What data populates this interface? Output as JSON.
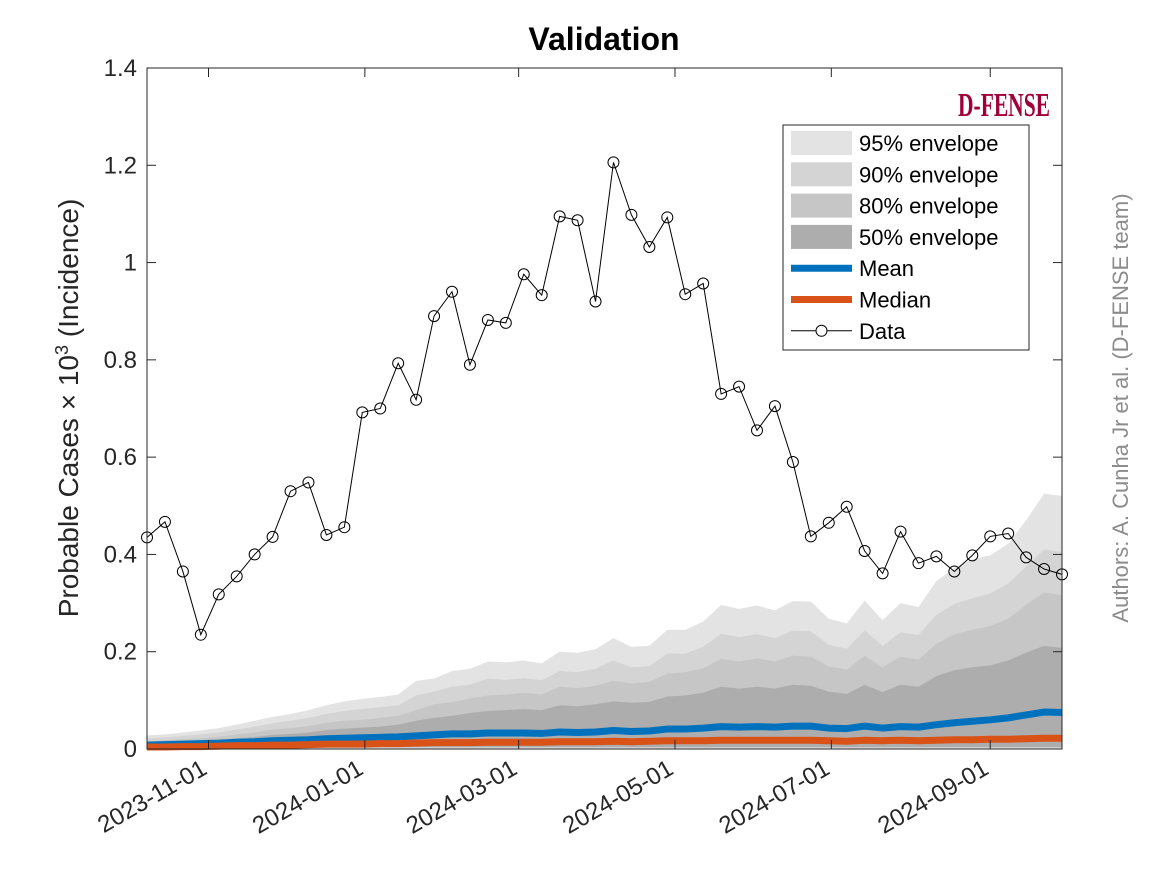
{
  "chart_data": {
    "type": "area",
    "title": "Validation",
    "ylabel_main": "Probable Cases ",
    "ylabel_times": "× 10",
    "ylabel_exp": "3",
    "ylabel_tail": " (Incidence)",
    "xlabel": "",
    "xlim": [
      "2023-10-08",
      "2024-09-29"
    ],
    "ylim": [
      0,
      1.4
    ],
    "y_ticks": [
      "0",
      "0.2",
      "0.4",
      "0.6",
      "0.8",
      "1",
      "1.2",
      "1.4"
    ],
    "x_ticks": [
      {
        "date": "2023-11-01",
        "label": "2023-11-01"
      },
      {
        "date": "2024-01-01",
        "label": "2024-01-01"
      },
      {
        "date": "2024-03-01",
        "label": "2024-03-01"
      },
      {
        "date": "2024-05-01",
        "label": "2024-05-01"
      },
      {
        "date": "2024-07-01",
        "label": "2024-07-01"
      },
      {
        "date": "2024-09-01",
        "label": "2024-09-01"
      }
    ],
    "grid": false,
    "legend_position": "top-right",
    "x": [
      "2023-10-08",
      "2023-10-15",
      "2023-10-22",
      "2023-10-29",
      "2023-11-05",
      "2023-11-12",
      "2023-11-19",
      "2023-11-26",
      "2023-12-03",
      "2023-12-10",
      "2023-12-17",
      "2023-12-24",
      "2023-12-31",
      "2024-01-07",
      "2024-01-14",
      "2024-01-21",
      "2024-01-28",
      "2024-02-04",
      "2024-02-11",
      "2024-02-18",
      "2024-02-25",
      "2024-03-03",
      "2024-03-10",
      "2024-03-17",
      "2024-03-24",
      "2024-03-31",
      "2024-04-07",
      "2024-04-14",
      "2024-04-21",
      "2024-04-28",
      "2024-05-05",
      "2024-05-12",
      "2024-05-19",
      "2024-05-26",
      "2024-06-02",
      "2024-06-09",
      "2024-06-16",
      "2024-06-23",
      "2024-06-30",
      "2024-07-07",
      "2024-07-14",
      "2024-07-21",
      "2024-07-28",
      "2024-08-04",
      "2024-08-11",
      "2024-08-18",
      "2024-08-25",
      "2024-09-01",
      "2024-09-08",
      "2024-09-15",
      "2024-09-22",
      "2024-09-29"
    ],
    "data": [
      0.435,
      0.467,
      0.365,
      0.235,
      0.318,
      0.355,
      0.4,
      0.436,
      0.53,
      0.548,
      0.44,
      0.456,
      0.692,
      0.7,
      0.793,
      0.718,
      0.89,
      0.94,
      0.79,
      0.882,
      0.876,
      0.976,
      0.933,
      1.095,
      1.087,
      0.92,
      1.206,
      1.098,
      1.032,
      1.093,
      0.935,
      0.957,
      0.73,
      0.745,
      0.655,
      0.705,
      0.59,
      0.437,
      0.465,
      0.498,
      0.407,
      0.361,
      0.447,
      0.382,
      0.396,
      0.365,
      0.398,
      0.437,
      0.443,
      0.394,
      0.37,
      0.359
    ],
    "envelopes": [
      {
        "name": "95% envelope",
        "color": "#e3e3e3",
        "lower": [
          0.001,
          0.001,
          0.001,
          0.001,
          0.001,
          0.001,
          0.001,
          0.001,
          0.001,
          0.001,
          0.001,
          0.001,
          0.001,
          0.001,
          0.001,
          0.001,
          0.001,
          0.001,
          0.001,
          0.001,
          0.001,
          0.001,
          0.001,
          0.001,
          0.001,
          0.001,
          0.001,
          0.001,
          0.001,
          0.001,
          0.001,
          0.001,
          0.001,
          0.001,
          0.001,
          0.001,
          0.001,
          0.001,
          0.001,
          0.001,
          0.001,
          0.001,
          0.001,
          0.001,
          0.001,
          0.001,
          0.001,
          0.001,
          0.001,
          0.001,
          0.001,
          0.001
        ],
        "upper": [
          0.028,
          0.03,
          0.034,
          0.038,
          0.043,
          0.05,
          0.058,
          0.066,
          0.072,
          0.08,
          0.09,
          0.098,
          0.103,
          0.107,
          0.112,
          0.14,
          0.145,
          0.16,
          0.165,
          0.18,
          0.178,
          0.182,
          0.176,
          0.2,
          0.198,
          0.205,
          0.228,
          0.21,
          0.212,
          0.245,
          0.245,
          0.262,
          0.296,
          0.288,
          0.295,
          0.285,
          0.304,
          0.303,
          0.268,
          0.258,
          0.305,
          0.265,
          0.3,
          0.292,
          0.345,
          0.372,
          0.39,
          0.398,
          0.422,
          0.47,
          0.525,
          0.52
        ]
      },
      {
        "name": "90% envelope",
        "color": "#d4d4d4",
        "lower": [
          0.002,
          0.002,
          0.002,
          0.002,
          0.002,
          0.002,
          0.002,
          0.002,
          0.002,
          0.002,
          0.002,
          0.002,
          0.002,
          0.002,
          0.002,
          0.002,
          0.002,
          0.002,
          0.002,
          0.002,
          0.002,
          0.002,
          0.002,
          0.002,
          0.002,
          0.002,
          0.002,
          0.002,
          0.002,
          0.002,
          0.002,
          0.002,
          0.002,
          0.002,
          0.002,
          0.002,
          0.002,
          0.002,
          0.002,
          0.002,
          0.002,
          0.002,
          0.002,
          0.002,
          0.002,
          0.002,
          0.002,
          0.002,
          0.002,
          0.002,
          0.002,
          0.002
        ],
        "upper": [
          0.022,
          0.024,
          0.027,
          0.03,
          0.034,
          0.04,
          0.046,
          0.053,
          0.058,
          0.064,
          0.072,
          0.078,
          0.082,
          0.086,
          0.09,
          0.11,
          0.118,
          0.128,
          0.132,
          0.145,
          0.142,
          0.146,
          0.141,
          0.16,
          0.158,
          0.165,
          0.182,
          0.168,
          0.17,
          0.196,
          0.196,
          0.21,
          0.237,
          0.23,
          0.236,
          0.228,
          0.243,
          0.242,
          0.214,
          0.206,
          0.244,
          0.212,
          0.24,
          0.234,
          0.276,
          0.298,
          0.31,
          0.32,
          0.34,
          0.375,
          0.41,
          0.405
        ]
      },
      {
        "name": "80% envelope",
        "color": "#c6c6c6",
        "lower": [
          0.003,
          0.003,
          0.003,
          0.003,
          0.003,
          0.003,
          0.003,
          0.003,
          0.003,
          0.003,
          0.003,
          0.003,
          0.003,
          0.003,
          0.003,
          0.003,
          0.003,
          0.003,
          0.003,
          0.003,
          0.003,
          0.003,
          0.003,
          0.003,
          0.003,
          0.003,
          0.003,
          0.003,
          0.003,
          0.003,
          0.003,
          0.003,
          0.003,
          0.003,
          0.003,
          0.003,
          0.003,
          0.003,
          0.003,
          0.003,
          0.003,
          0.003,
          0.003,
          0.003,
          0.003,
          0.003,
          0.003,
          0.003,
          0.003,
          0.003,
          0.003,
          0.003
        ],
        "upper": [
          0.016,
          0.018,
          0.02,
          0.022,
          0.025,
          0.03,
          0.034,
          0.04,
          0.043,
          0.047,
          0.054,
          0.058,
          0.06,
          0.064,
          0.068,
          0.08,
          0.092,
          0.096,
          0.104,
          0.11,
          0.112,
          0.115,
          0.112,
          0.128,
          0.125,
          0.13,
          0.14,
          0.135,
          0.138,
          0.155,
          0.158,
          0.166,
          0.185,
          0.18,
          0.186,
          0.18,
          0.192,
          0.19,
          0.17,
          0.163,
          0.192,
          0.168,
          0.19,
          0.184,
          0.216,
          0.236,
          0.245,
          0.253,
          0.268,
          0.296,
          0.322,
          0.316
        ]
      },
      {
        "name": "50% envelope",
        "color": "#adadad",
        "lower": [
          0.004,
          0.004,
          0.004,
          0.004,
          0.004,
          0.004,
          0.004,
          0.004,
          0.004,
          0.004,
          0.004,
          0.004,
          0.004,
          0.004,
          0.004,
          0.004,
          0.004,
          0.004,
          0.004,
          0.004,
          0.004,
          0.004,
          0.004,
          0.004,
          0.004,
          0.004,
          0.004,
          0.004,
          0.004,
          0.004,
          0.004,
          0.004,
          0.004,
          0.004,
          0.004,
          0.004,
          0.004,
          0.004,
          0.004,
          0.004,
          0.004,
          0.004,
          0.004,
          0.004,
          0.004,
          0.004,
          0.004,
          0.004,
          0.004,
          0.004,
          0.004,
          0.004
        ],
        "upper": [
          0.012,
          0.013,
          0.015,
          0.016,
          0.018,
          0.022,
          0.025,
          0.029,
          0.031,
          0.034,
          0.039,
          0.042,
          0.044,
          0.046,
          0.05,
          0.058,
          0.064,
          0.068,
          0.074,
          0.078,
          0.08,
          0.082,
          0.08,
          0.09,
          0.088,
          0.092,
          0.098,
          0.095,
          0.097,
          0.108,
          0.11,
          0.116,
          0.128,
          0.124,
          0.128,
          0.124,
          0.132,
          0.13,
          0.118,
          0.113,
          0.132,
          0.117,
          0.132,
          0.128,
          0.15,
          0.162,
          0.168,
          0.172,
          0.182,
          0.198,
          0.212,
          0.208
        ]
      }
    ],
    "series": [
      {
        "name": "Mean",
        "color": "#0072bd",
        "values": [
          0.008,
          0.009,
          0.01,
          0.011,
          0.012,
          0.014,
          0.015,
          0.017,
          0.018,
          0.019,
          0.021,
          0.022,
          0.023,
          0.024,
          0.025,
          0.027,
          0.029,
          0.031,
          0.031,
          0.033,
          0.033,
          0.033,
          0.032,
          0.035,
          0.034,
          0.035,
          0.038,
          0.036,
          0.037,
          0.041,
          0.041,
          0.043,
          0.046,
          0.045,
          0.046,
          0.045,
          0.047,
          0.047,
          0.043,
          0.042,
          0.047,
          0.043,
          0.046,
          0.045,
          0.05,
          0.054,
          0.057,
          0.06,
          0.064,
          0.07,
          0.076,
          0.075
        ]
      },
      {
        "name": "Median",
        "color": "#d95319",
        "values": [
          0.004,
          0.004,
          0.005,
          0.005,
          0.006,
          0.007,
          0.007,
          0.008,
          0.008,
          0.009,
          0.01,
          0.01,
          0.01,
          0.011,
          0.011,
          0.012,
          0.013,
          0.013,
          0.013,
          0.014,
          0.014,
          0.014,
          0.014,
          0.015,
          0.015,
          0.015,
          0.016,
          0.015,
          0.016,
          0.017,
          0.017,
          0.017,
          0.018,
          0.018,
          0.018,
          0.018,
          0.018,
          0.018,
          0.017,
          0.016,
          0.018,
          0.017,
          0.018,
          0.017,
          0.018,
          0.019,
          0.019,
          0.02,
          0.02,
          0.021,
          0.022,
          0.022
        ]
      }
    ],
    "data_legend": "Data",
    "data_color": "#000000",
    "logo_text": "D-FENSE",
    "logo_color": "#a0003a",
    "authors": "Authors: A. Cunha Jr et al. (D-FENSE team)"
  }
}
